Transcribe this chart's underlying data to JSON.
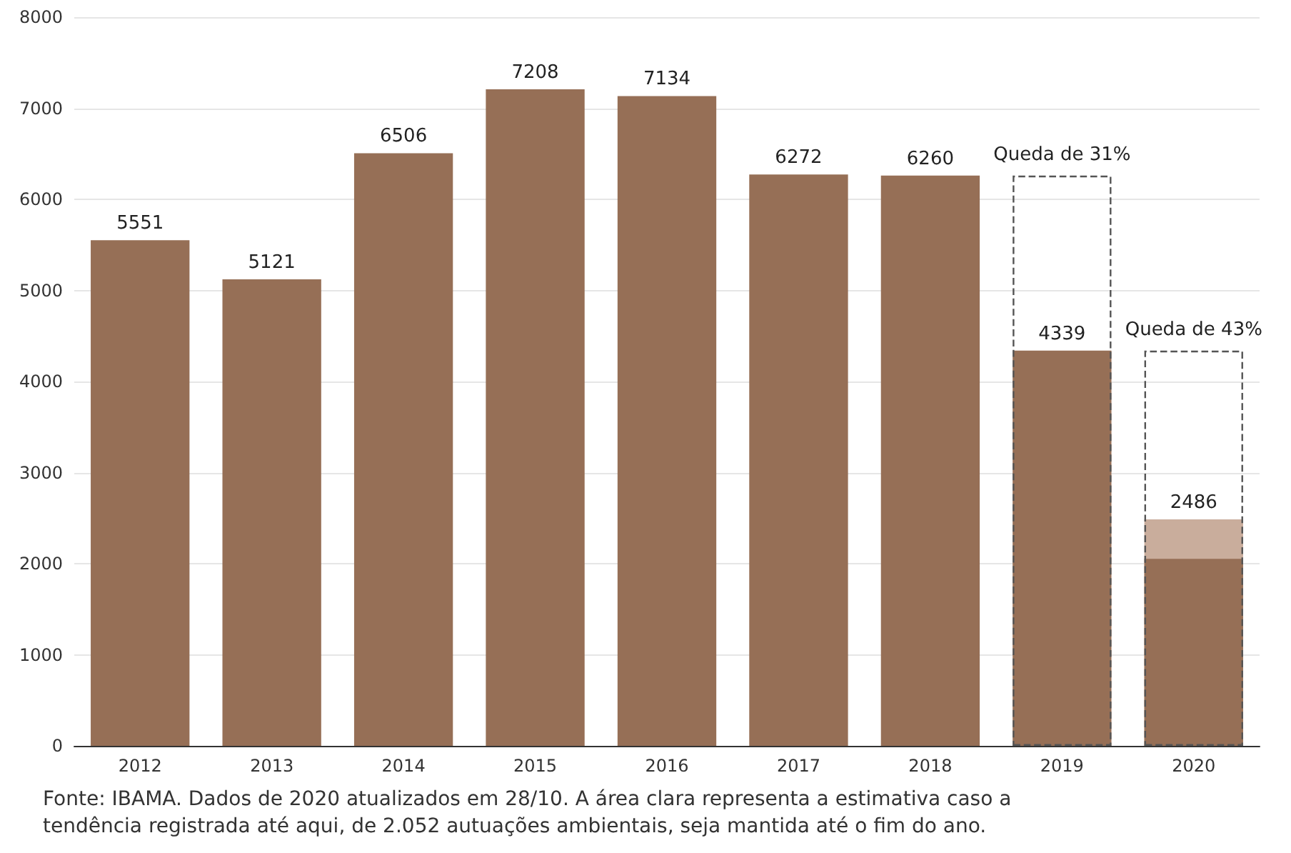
{
  "chart_data": {
    "type": "bar",
    "categories": [
      "2012",
      "2013",
      "2014",
      "2015",
      "2016",
      "2017",
      "2018",
      "2019",
      "2020"
    ],
    "series": [
      {
        "color": "#c9ad9c",
        "values": [
          null,
          null,
          null,
          null,
          null,
          null,
          null,
          null,
          2486
        ],
        "value_labels": [
          null,
          null,
          null,
          null,
          null,
          null,
          null,
          null,
          "2486"
        ]
      },
      {
        "color": "#966f56",
        "values": [
          5551,
          5121,
          6506,
          7208,
          7134,
          6272,
          6260,
          4339,
          2052
        ],
        "value_labels": [
          "5551",
          "5121",
          "6506",
          "7208",
          "7134",
          "6272",
          "6260",
          "4339",
          null
        ]
      },
      {
        "color": "#555555",
        "line_style": "dashed",
        "values": [
          null,
          null,
          null,
          null,
          null,
          null,
          null,
          6260,
          4339
        ]
      }
    ],
    "ylim": [
      0,
      8000
    ],
    "yticks": [
      0,
      1000,
      2000,
      3000,
      4000,
      5000,
      6000,
      7000,
      8000
    ],
    "grid": "y",
    "annotations": [
      {
        "text": "Queda de 31%",
        "x": "2019",
        "y": 6260
      },
      {
        "text": "Queda de 43%",
        "x": "2020",
        "y": 4339
      },
      "Fonte: IBAMA. Dados de 2020 atualizados em 28/10. A área clara representa a estimativa caso a tendência registrada até aqui, de 2.052 autuações ambientais, seja mantida até o fim do ano."
    ]
  }
}
